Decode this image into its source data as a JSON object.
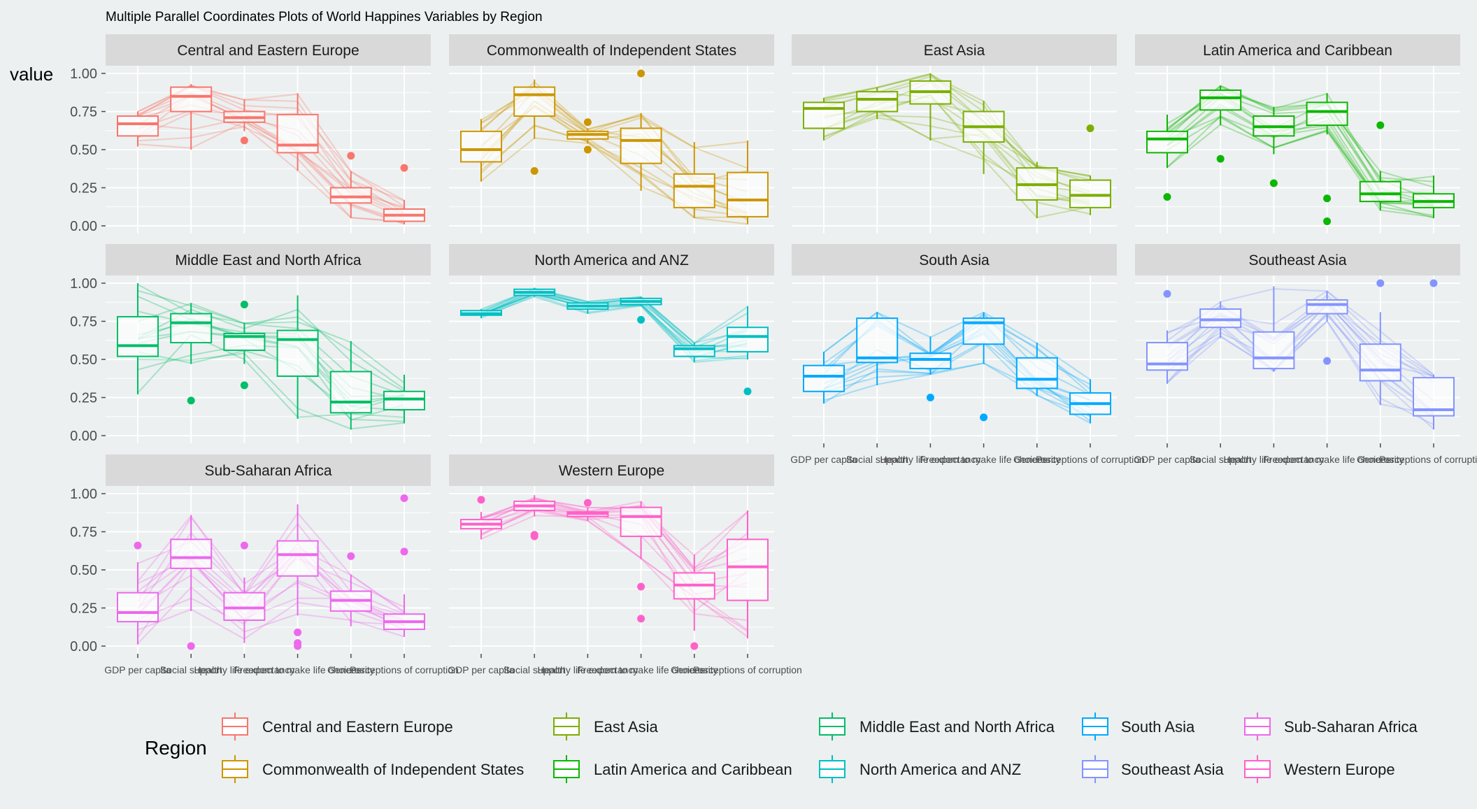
{
  "chart_data": {
    "type": "parallel-coordinates-boxplot",
    "title": "Multiple Parallel Coordinates Plots of World Happines Variables by Region",
    "ylabel": "value",
    "xlabel": "",
    "ylim": [
      0,
      1
    ],
    "yticks": [
      "0.00",
      "0.25",
      "0.50",
      "0.75",
      "1.00"
    ],
    "ytick_values": [
      0,
      0.25,
      0.5,
      0.75,
      1
    ],
    "variables": [
      "GDP per capita",
      "Social support",
      "Healthy life expectancy",
      "Freedom to make life choices",
      "Generosity",
      "Perceptions of corruption"
    ],
    "legend": {
      "title": "Region",
      "position": "bottom"
    },
    "panels": [
      {
        "region": "Central and Eastern Europe",
        "color": "#F8766D",
        "boxes": [
          {
            "q1": 0.59,
            "median": 0.67,
            "q3": 0.72,
            "low": 0.52,
            "high": 0.75,
            "outliers": []
          },
          {
            "q1": 0.75,
            "median": 0.85,
            "q3": 0.91,
            "low": 0.5,
            "high": 0.93,
            "outliers": []
          },
          {
            "q1": 0.68,
            "median": 0.71,
            "q3": 0.75,
            "low": 0.62,
            "high": 0.83,
            "outliers": [
              0.56
            ]
          },
          {
            "q1": 0.48,
            "median": 0.53,
            "q3": 0.73,
            "low": 0.36,
            "high": 0.87,
            "outliers": []
          },
          {
            "q1": 0.15,
            "median": 0.19,
            "q3": 0.25,
            "low": 0.05,
            "high": 0.36,
            "outliers": [
              0.46
            ]
          },
          {
            "q1": 0.03,
            "median": 0.07,
            "q3": 0.11,
            "low": 0.01,
            "high": 0.17,
            "outliers": [
              0.38
            ]
          }
        ]
      },
      {
        "region": "Commonwealth of Independent States",
        "color": "#CD9600",
        "boxes": [
          {
            "q1": 0.42,
            "median": 0.5,
            "q3": 0.62,
            "low": 0.29,
            "high": 0.7,
            "outliers": []
          },
          {
            "q1": 0.72,
            "median": 0.86,
            "q3": 0.91,
            "low": 0.57,
            "high": 0.96,
            "outliers": [
              0.36
            ]
          },
          {
            "q1": 0.57,
            "median": 0.6,
            "q3": 0.62,
            "low": 0.54,
            "high": 0.64,
            "outliers": [
              0.68,
              0.5
            ]
          },
          {
            "q1": 0.41,
            "median": 0.56,
            "q3": 0.64,
            "low": 0.23,
            "high": 0.74,
            "outliers": [
              1.0
            ]
          },
          {
            "q1": 0.12,
            "median": 0.26,
            "q3": 0.34,
            "low": 0.05,
            "high": 0.55,
            "outliers": []
          },
          {
            "q1": 0.06,
            "median": 0.17,
            "q3": 0.35,
            "low": 0.01,
            "high": 0.56,
            "outliers": []
          }
        ]
      },
      {
        "region": "East Asia",
        "color": "#7CAE00",
        "boxes": [
          {
            "q1": 0.64,
            "median": 0.77,
            "q3": 0.81,
            "low": 0.56,
            "high": 0.84,
            "outliers": []
          },
          {
            "q1": 0.75,
            "median": 0.83,
            "q3": 0.88,
            "low": 0.7,
            "high": 0.91,
            "outliers": []
          },
          {
            "q1": 0.8,
            "median": 0.88,
            "q3": 0.95,
            "low": 0.56,
            "high": 1.0,
            "outliers": []
          },
          {
            "q1": 0.55,
            "median": 0.65,
            "q3": 0.75,
            "low": 0.34,
            "high": 0.82,
            "outliers": []
          },
          {
            "q1": 0.17,
            "median": 0.27,
            "q3": 0.38,
            "low": 0.05,
            "high": 0.42,
            "outliers": []
          },
          {
            "q1": 0.12,
            "median": 0.2,
            "q3": 0.3,
            "low": 0.07,
            "high": 0.33,
            "outliers": [
              0.64
            ]
          }
        ]
      },
      {
        "region": "Latin America and Caribbean",
        "color": "#0CB702",
        "boxes": [
          {
            "q1": 0.48,
            "median": 0.57,
            "q3": 0.62,
            "low": 0.38,
            "high": 0.73,
            "outliers": [
              0.19
            ]
          },
          {
            "q1": 0.76,
            "median": 0.84,
            "q3": 0.89,
            "low": 0.66,
            "high": 0.92,
            "outliers": [
              0.44
            ]
          },
          {
            "q1": 0.59,
            "median": 0.65,
            "q3": 0.72,
            "low": 0.47,
            "high": 0.78,
            "outliers": [
              0.28
            ]
          },
          {
            "q1": 0.66,
            "median": 0.75,
            "q3": 0.81,
            "low": 0.6,
            "high": 0.87,
            "outliers": [
              0.18,
              0.03
            ]
          },
          {
            "q1": 0.16,
            "median": 0.21,
            "q3": 0.29,
            "low": 0.1,
            "high": 0.36,
            "outliers": [
              0.66
            ]
          },
          {
            "q1": 0.12,
            "median": 0.16,
            "q3": 0.21,
            "low": 0.05,
            "high": 0.33,
            "outliers": []
          }
        ]
      },
      {
        "region": "Middle East and North Africa",
        "color": "#00BE67",
        "boxes": [
          {
            "q1": 0.52,
            "median": 0.59,
            "q3": 0.78,
            "low": 0.27,
            "high": 1.0,
            "outliers": []
          },
          {
            "q1": 0.61,
            "median": 0.74,
            "q3": 0.8,
            "low": 0.47,
            "high": 0.87,
            "outliers": [
              0.23
            ]
          },
          {
            "q1": 0.56,
            "median": 0.65,
            "q3": 0.67,
            "low": 0.47,
            "high": 0.74,
            "outliers": [
              0.86,
              0.33
            ]
          },
          {
            "q1": 0.39,
            "median": 0.63,
            "q3": 0.69,
            "low": 0.11,
            "high": 0.92,
            "outliers": []
          },
          {
            "q1": 0.15,
            "median": 0.22,
            "q3": 0.42,
            "low": 0.04,
            "high": 0.62,
            "outliers": []
          },
          {
            "q1": 0.17,
            "median": 0.24,
            "q3": 0.29,
            "low": 0.08,
            "high": 0.4,
            "outliers": []
          }
        ]
      },
      {
        "region": "North America and ANZ",
        "color": "#00BFC4",
        "boxes": [
          {
            "q1": 0.79,
            "median": 0.8,
            "q3": 0.82,
            "low": 0.77,
            "high": 0.83,
            "outliers": []
          },
          {
            "q1": 0.92,
            "median": 0.94,
            "q3": 0.96,
            "low": 0.91,
            "high": 0.97,
            "outliers": []
          },
          {
            "q1": 0.83,
            "median": 0.85,
            "q3": 0.87,
            "low": 0.8,
            "high": 0.88,
            "outliers": []
          },
          {
            "q1": 0.86,
            "median": 0.88,
            "q3": 0.9,
            "low": 0.85,
            "high": 0.91,
            "outliers": [
              0.76
            ]
          },
          {
            "q1": 0.52,
            "median": 0.57,
            "q3": 0.59,
            "low": 0.48,
            "high": 0.61,
            "outliers": []
          },
          {
            "q1": 0.55,
            "median": 0.65,
            "q3": 0.71,
            "low": 0.5,
            "high": 0.85,
            "outliers": [
              0.29
            ]
          }
        ]
      },
      {
        "region": "South Asia",
        "color": "#00A9FF",
        "boxes": [
          {
            "q1": 0.29,
            "median": 0.39,
            "q3": 0.46,
            "low": 0.21,
            "high": 0.55,
            "outliers": []
          },
          {
            "q1": 0.48,
            "median": 0.51,
            "q3": 0.77,
            "low": 0.33,
            "high": 0.81,
            "outliers": []
          },
          {
            "q1": 0.44,
            "median": 0.5,
            "q3": 0.54,
            "low": 0.4,
            "high": 0.65,
            "outliers": [
              0.25
            ]
          },
          {
            "q1": 0.6,
            "median": 0.74,
            "q3": 0.77,
            "low": 0.47,
            "high": 0.81,
            "outliers": [
              0.12
            ]
          },
          {
            "q1": 0.31,
            "median": 0.37,
            "q3": 0.51,
            "low": 0.26,
            "high": 0.61,
            "outliers": []
          },
          {
            "q1": 0.14,
            "median": 0.21,
            "q3": 0.28,
            "low": 0.08,
            "high": 0.37,
            "outliers": []
          }
        ]
      },
      {
        "region": "Southeast Asia",
        "color": "#8494FF",
        "boxes": [
          {
            "q1": 0.43,
            "median": 0.47,
            "q3": 0.61,
            "low": 0.34,
            "high": 0.69,
            "outliers": [
              0.93
            ]
          },
          {
            "q1": 0.71,
            "median": 0.76,
            "q3": 0.83,
            "low": 0.64,
            "high": 0.88,
            "outliers": []
          },
          {
            "q1": 0.44,
            "median": 0.51,
            "q3": 0.68,
            "low": 0.42,
            "high": 0.98,
            "outliers": []
          },
          {
            "q1": 0.8,
            "median": 0.86,
            "q3": 0.89,
            "low": 0.75,
            "high": 0.95,
            "outliers": [
              0.49
            ]
          },
          {
            "q1": 0.36,
            "median": 0.43,
            "q3": 0.6,
            "low": 0.2,
            "high": 0.81,
            "outliers": [
              1.0
            ]
          },
          {
            "q1": 0.13,
            "median": 0.17,
            "q3": 0.38,
            "low": 0.04,
            "high": 0.4,
            "outliers": [
              1.0
            ]
          }
        ]
      },
      {
        "region": "Sub-Saharan Africa",
        "color": "#ED68ED",
        "boxes": [
          {
            "q1": 0.16,
            "median": 0.22,
            "q3": 0.35,
            "low": 0.01,
            "high": 0.55,
            "outliers": [
              0.66
            ]
          },
          {
            "q1": 0.51,
            "median": 0.58,
            "q3": 0.7,
            "low": 0.23,
            "high": 0.86,
            "outliers": [
              0.0
            ]
          },
          {
            "q1": 0.17,
            "median": 0.25,
            "q3": 0.35,
            "low": 0.02,
            "high": 0.45,
            "outliers": [
              0.66
            ]
          },
          {
            "q1": 0.46,
            "median": 0.6,
            "q3": 0.69,
            "low": 0.2,
            "high": 0.93,
            "outliers": [
              0.09,
              0.02,
              0.0
            ]
          },
          {
            "q1": 0.23,
            "median": 0.3,
            "q3": 0.36,
            "low": 0.13,
            "high": 0.47,
            "outliers": [
              0.59
            ]
          },
          {
            "q1": 0.11,
            "median": 0.16,
            "q3": 0.21,
            "low": 0.06,
            "high": 0.34,
            "outliers": [
              0.97,
              0.62
            ]
          }
        ]
      },
      {
        "region": "Western Europe",
        "color": "#FF61C9",
        "boxes": [
          {
            "q1": 0.77,
            "median": 0.8,
            "q3": 0.83,
            "low": 0.7,
            "high": 0.88,
            "outliers": [
              0.96
            ]
          },
          {
            "q1": 0.89,
            "median": 0.92,
            "q3": 0.95,
            "low": 0.85,
            "high": 0.99,
            "outliers": [
              0.73,
              0.72
            ]
          },
          {
            "q1": 0.85,
            "median": 0.87,
            "q3": 0.88,
            "low": 0.82,
            "high": 0.91,
            "outliers": [
              0.94
            ]
          },
          {
            "q1": 0.72,
            "median": 0.85,
            "q3": 0.91,
            "low": 0.57,
            "high": 0.95,
            "outliers": [
              0.39,
              0.18
            ]
          },
          {
            "q1": 0.31,
            "median": 0.4,
            "q3": 0.48,
            "low": 0.1,
            "high": 0.6,
            "outliers": [
              0.0
            ]
          },
          {
            "q1": 0.3,
            "median": 0.52,
            "q3": 0.7,
            "low": 0.05,
            "high": 0.89,
            "outliers": []
          }
        ]
      }
    ]
  }
}
